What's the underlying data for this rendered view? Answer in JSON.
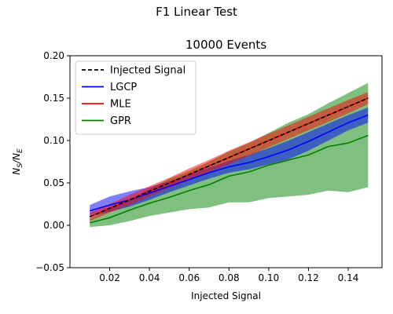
{
  "figure": {
    "suptitle": "F1 Linear Test"
  },
  "chart_data": {
    "type": "line",
    "title": "10000 Events",
    "xlabel": "Injected Signal",
    "ylabel": "N_S/N_E",
    "xlim": [
      0.0,
      0.157
    ],
    "ylim": [
      -0.05,
      0.2
    ],
    "xticks": [
      0.02,
      0.04,
      0.06,
      0.08,
      0.1,
      0.12,
      0.14
    ],
    "xtick_labels": [
      "0.02",
      "0.04",
      "0.06",
      "0.08",
      "0.10",
      "0.12",
      "0.14"
    ],
    "yticks": [
      -0.05,
      0.0,
      0.05,
      0.1,
      0.15,
      0.2
    ],
    "ytick_labels": [
      "−0.05",
      "0.00",
      "0.05",
      "0.10",
      "0.15",
      "0.20"
    ],
    "grid": false,
    "legend_position": "upper-left",
    "x": [
      0.01,
      0.02,
      0.03,
      0.04,
      0.05,
      0.06,
      0.07,
      0.08,
      0.09,
      0.1,
      0.11,
      0.12,
      0.13,
      0.14,
      0.15
    ],
    "series": [
      {
        "name": "Injected Signal",
        "color": "#000000",
        "dashed": true,
        "values": [
          0.01,
          0.02,
          0.03,
          0.04,
          0.05,
          0.06,
          0.07,
          0.08,
          0.09,
          0.1,
          0.11,
          0.12,
          0.13,
          0.14,
          0.15
        ]
      },
      {
        "name": "LGCP",
        "color": "#0000ff",
        "values": [
          0.017,
          0.024,
          0.03,
          0.038,
          0.046,
          0.054,
          0.062,
          0.069,
          0.074,
          0.081,
          0.089,
          0.099,
          0.11,
          0.121,
          0.13
        ],
        "band_upper": [
          0.024,
          0.034,
          0.04,
          0.045,
          0.052,
          0.06,
          0.068,
          0.076,
          0.083,
          0.091,
          0.1,
          0.11,
          0.12,
          0.13,
          0.139
        ],
        "band_lower": [
          0.01,
          0.016,
          0.022,
          0.03,
          0.039,
          0.047,
          0.055,
          0.062,
          0.066,
          0.072,
          0.078,
          0.088,
          0.1,
          0.112,
          0.121
        ]
      },
      {
        "name": "MLE",
        "color": "#ff0000",
        "values": [
          0.01,
          0.02,
          0.03,
          0.04,
          0.05,
          0.06,
          0.07,
          0.08,
          0.09,
          0.1,
          0.11,
          0.12,
          0.13,
          0.14,
          0.15
        ],
        "band_upper": [
          0.015,
          0.025,
          0.036,
          0.046,
          0.056,
          0.067,
          0.077,
          0.088,
          0.098,
          0.108,
          0.118,
          0.128,
          0.138,
          0.148,
          0.157
        ],
        "band_lower": [
          0.005,
          0.015,
          0.024,
          0.034,
          0.044,
          0.053,
          0.063,
          0.072,
          0.082,
          0.092,
          0.102,
          0.112,
          0.122,
          0.132,
          0.143
        ]
      },
      {
        "name": "GPR",
        "color": "#008000",
        "values": [
          0.003,
          0.009,
          0.018,
          0.026,
          0.033,
          0.041,
          0.048,
          0.058,
          0.063,
          0.071,
          0.077,
          0.083,
          0.093,
          0.097,
          0.106
        ],
        "band_upper": [
          0.008,
          0.019,
          0.03,
          0.043,
          0.055,
          0.064,
          0.075,
          0.087,
          0.097,
          0.109,
          0.121,
          0.131,
          0.144,
          0.156,
          0.168
        ],
        "band_lower": [
          -0.002,
          0.0,
          0.005,
          0.011,
          0.015,
          0.019,
          0.021,
          0.027,
          0.027,
          0.032,
          0.034,
          0.036,
          0.041,
          0.039,
          0.045
        ]
      }
    ]
  }
}
